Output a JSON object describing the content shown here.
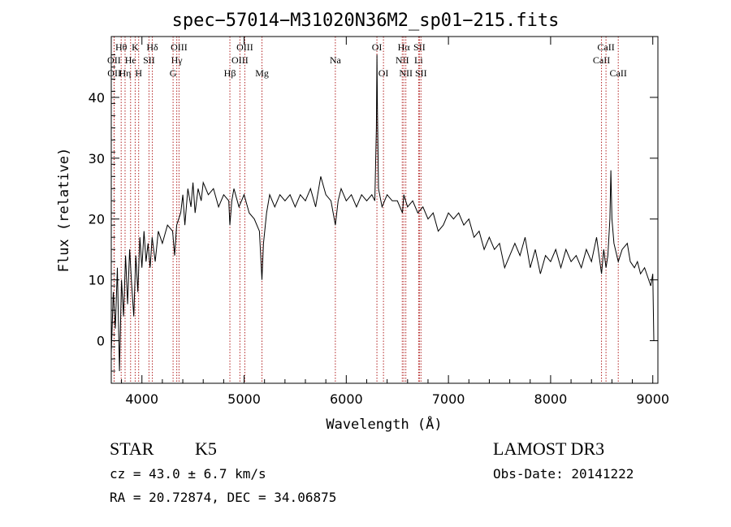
{
  "chart_data": {
    "type": "line",
    "title": "spec−57014−M31020N36M2_sp01−215.fits",
    "xlabel": "Wavelength (Å)",
    "ylabel": "Flux (relative)",
    "xlim": [
      3700,
      9050
    ],
    "ylim": [
      -7,
      50
    ],
    "xticks": [
      4000,
      5000,
      6000,
      7000,
      8000,
      9000
    ],
    "yticks": [
      0,
      10,
      20,
      30,
      40
    ],
    "series": [
      {
        "name": "spectrum",
        "color": "#000000",
        "points": [
          [
            3700,
            -2
          ],
          [
            3720,
            8
          ],
          [
            3740,
            2
          ],
          [
            3760,
            12
          ],
          [
            3780,
            -5
          ],
          [
            3800,
            10
          ],
          [
            3820,
            4
          ],
          [
            3840,
            14
          ],
          [
            3860,
            6
          ],
          [
            3880,
            15
          ],
          [
            3900,
            9
          ],
          [
            3920,
            4
          ],
          [
            3940,
            14
          ],
          [
            3960,
            8
          ],
          [
            3980,
            17
          ],
          [
            4000,
            12
          ],
          [
            4020,
            18
          ],
          [
            4040,
            13
          ],
          [
            4060,
            16
          ],
          [
            4080,
            12
          ],
          [
            4100,
            17
          ],
          [
            4130,
            13
          ],
          [
            4160,
            18
          ],
          [
            4200,
            16
          ],
          [
            4250,
            19
          ],
          [
            4300,
            18
          ],
          [
            4320,
            14
          ],
          [
            4340,
            19
          ],
          [
            4380,
            21
          ],
          [
            4400,
            24
          ],
          [
            4420,
            19
          ],
          [
            4450,
            25
          ],
          [
            4480,
            22
          ],
          [
            4500,
            26
          ],
          [
            4520,
            21
          ],
          [
            4550,
            25
          ],
          [
            4580,
            23
          ],
          [
            4600,
            26
          ],
          [
            4650,
            24
          ],
          [
            4700,
            25
          ],
          [
            4750,
            22
          ],
          [
            4800,
            24
          ],
          [
            4850,
            23
          ],
          [
            4861,
            19
          ],
          [
            4880,
            23
          ],
          [
            4900,
            25
          ],
          [
            4950,
            22
          ],
          [
            5000,
            24
          ],
          [
            5050,
            21
          ],
          [
            5100,
            20
          ],
          [
            5150,
            18
          ],
          [
            5175,
            10
          ],
          [
            5190,
            16
          ],
          [
            5220,
            21
          ],
          [
            5250,
            24
          ],
          [
            5300,
            22
          ],
          [
            5350,
            24
          ],
          [
            5400,
            23
          ],
          [
            5450,
            24
          ],
          [
            5500,
            22
          ],
          [
            5550,
            24
          ],
          [
            5600,
            23
          ],
          [
            5650,
            25
          ],
          [
            5700,
            22
          ],
          [
            5750,
            27
          ],
          [
            5800,
            24
          ],
          [
            5850,
            23
          ],
          [
            5893,
            19
          ],
          [
            5920,
            23
          ],
          [
            5950,
            25
          ],
          [
            6000,
            23
          ],
          [
            6050,
            24
          ],
          [
            6100,
            22
          ],
          [
            6150,
            24
          ],
          [
            6200,
            23
          ],
          [
            6250,
            24
          ],
          [
            6280,
            23
          ],
          [
            6295,
            35
          ],
          [
            6300,
            47
          ],
          [
            6305,
            38
          ],
          [
            6315,
            25
          ],
          [
            6350,
            22
          ],
          [
            6400,
            24
          ],
          [
            6450,
            23
          ],
          [
            6500,
            23
          ],
          [
            6550,
            21
          ],
          [
            6563,
            24
          ],
          [
            6600,
            22
          ],
          [
            6650,
            23
          ],
          [
            6700,
            21
          ],
          [
            6750,
            22
          ],
          [
            6800,
            20
          ],
          [
            6850,
            21
          ],
          [
            6900,
            18
          ],
          [
            6950,
            19
          ],
          [
            7000,
            21
          ],
          [
            7050,
            20
          ],
          [
            7100,
            21
          ],
          [
            7150,
            19
          ],
          [
            7200,
            20
          ],
          [
            7250,
            17
          ],
          [
            7300,
            18
          ],
          [
            7350,
            15
          ],
          [
            7400,
            17
          ],
          [
            7450,
            15
          ],
          [
            7500,
            16
          ],
          [
            7550,
            12
          ],
          [
            7600,
            14
          ],
          [
            7650,
            16
          ],
          [
            7700,
            14
          ],
          [
            7750,
            17
          ],
          [
            7800,
            12
          ],
          [
            7850,
            15
          ],
          [
            7900,
            11
          ],
          [
            7950,
            14
          ],
          [
            8000,
            13
          ],
          [
            8050,
            15
          ],
          [
            8100,
            12
          ],
          [
            8150,
            15
          ],
          [
            8200,
            13
          ],
          [
            8250,
            14
          ],
          [
            8300,
            12
          ],
          [
            8350,
            15
          ],
          [
            8400,
            13
          ],
          [
            8450,
            17
          ],
          [
            8498,
            11
          ],
          [
            8520,
            15
          ],
          [
            8542,
            12
          ],
          [
            8560,
            14
          ],
          [
            8580,
            20
          ],
          [
            8590,
            28
          ],
          [
            8600,
            20
          ],
          [
            8620,
            16
          ],
          [
            8662,
            13
          ],
          [
            8700,
            15
          ],
          [
            8750,
            16
          ],
          [
            8780,
            13
          ],
          [
            8820,
            12
          ],
          [
            8850,
            13
          ],
          [
            8880,
            11
          ],
          [
            8920,
            12
          ],
          [
            8960,
            10
          ],
          [
            8980,
            9
          ],
          [
            9000,
            11
          ],
          [
            9010,
            0
          ]
        ]
      }
    ],
    "lines": [
      {
        "label": "Hθ",
        "x": 3797,
        "row": 0
      },
      {
        "label": "OII",
        "x": 3727,
        "row": 1
      },
      {
        "label": "OII",
        "x": 3729,
        "row": 2
      },
      {
        "label": "Hη",
        "x": 3835,
        "row": 2
      },
      {
        "label": "He",
        "x": 3889,
        "row": 1
      },
      {
        "label": "K",
        "x": 3934,
        "row": 0
      },
      {
        "label": "H",
        "x": 3968,
        "row": 2
      },
      {
        "label": "SII",
        "x": 4069,
        "row": 1
      },
      {
        "label": "Hδ",
        "x": 4102,
        "row": 0
      },
      {
        "label": "Hγ",
        "x": 4341,
        "row": 1
      },
      {
        "label": "OIII",
        "x": 4363,
        "row": 0
      },
      {
        "label": "G",
        "x": 4305,
        "row": 2
      },
      {
        "label": "Hβ",
        "x": 4861,
        "row": 2
      },
      {
        "label": "OIII",
        "x": 4959,
        "row": 1
      },
      {
        "label": "OIII",
        "x": 5007,
        "row": 0
      },
      {
        "label": "Mg",
        "x": 5175,
        "row": 2
      },
      {
        "label": "Na",
        "x": 5893,
        "row": 1
      },
      {
        "label": "OI",
        "x": 6300,
        "row": 0
      },
      {
        "label": "OI",
        "x": 6364,
        "row": 2
      },
      {
        "label": "NII",
        "x": 6548,
        "row": 1
      },
      {
        "label": "Hα",
        "x": 6563,
        "row": 0
      },
      {
        "label": "NII",
        "x": 6583,
        "row": 2
      },
      {
        "label": "SII",
        "x": 6716,
        "row": 0
      },
      {
        "label": "Li",
        "x": 6708,
        "row": 1
      },
      {
        "label": "SII",
        "x": 6731,
        "row": 2
      },
      {
        "label": "CaII",
        "x": 8498,
        "row": 1
      },
      {
        "label": "CaII",
        "x": 8542,
        "row": 0
      },
      {
        "label": "CaII",
        "x": 8662,
        "row": 2
      }
    ]
  },
  "info": {
    "class_label": "STAR",
    "subclass_label": "K5",
    "survey": "LAMOST DR3",
    "cz": "cz = 43.0 ± 6.7 km/s",
    "obs_date": "Obs-Date: 20141222",
    "coords": "RA =  20.72874, DEC =  34.06875"
  },
  "colors": {
    "line_marker": "#b22222",
    "spectrum": "#000000",
    "axis": "#000000"
  }
}
